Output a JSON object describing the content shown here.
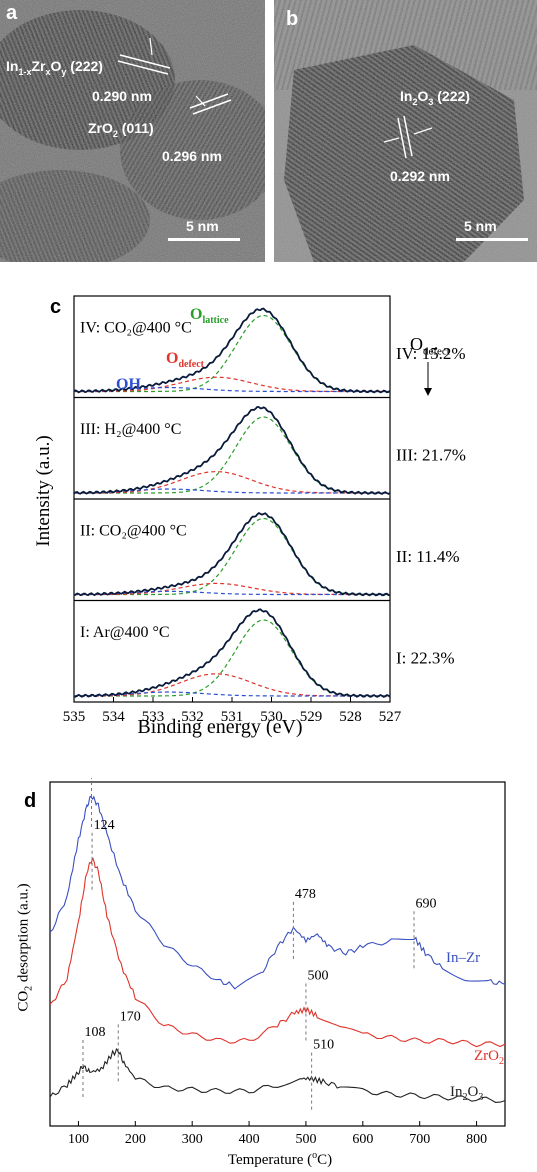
{
  "figure": {
    "panel_a": {
      "letter": "a",
      "labels": {
        "in_zr_main": "In",
        "in_zr_sub1": "1-x",
        "in_zr_mid": "Zr",
        "in_zr_sub2": "x",
        "in_zr_o": "O",
        "in_zr_sub3": "y",
        "in_zr_plane": " (222)",
        "d1": "0.290 nm",
        "zro2_main": "ZrO",
        "zro2_sub": "2",
        "zro2_plane": " (011)",
        "d2": "0.296 nm"
      },
      "scalebar": "5 nm"
    },
    "panel_b": {
      "letter": "b",
      "labels": {
        "in2o3_main": "In",
        "in2o3_sub1": "2",
        "in2o3_o": "O",
        "in2o3_sub2": "3",
        "in2o3_plane": " (222)",
        "d": "0.292 nm"
      },
      "scalebar": "5 nm"
    }
  },
  "chart_data": [
    {
      "panel": "c",
      "type": "line",
      "xlabel": "Binding energy (eV)",
      "ylabel": "Intensity (a.u.)",
      "xlim": [
        535,
        527
      ],
      "x_ticks": [
        "535",
        "534",
        "533",
        "532",
        "531",
        "530",
        "529",
        "528",
        "527"
      ],
      "component_labels": {
        "lattice_main": "O",
        "lattice_sub": "lattice",
        "defect_main": "O",
        "defect_sub": "defect",
        "oh": "OH"
      },
      "odefect_header": {
        "main": "O",
        "sub": "defect"
      },
      "component_colors": {
        "lattice": "#2a9d2a",
        "defect": "#e0332b",
        "oh": "#2c4fd0",
        "envelope": "#0a1a3a"
      },
      "spectra": [
        {
          "label": "IV: CO₂@400 °C",
          "odefect": "IV: 15.2%",
          "peak_ev": 530.2,
          "lattice_height": 1.0,
          "defect_height": 0.18,
          "oh_height": 0.05
        },
        {
          "label": "III: H₂@400 °C",
          "odefect": "III: 21.7%",
          "peak_ev": 530.2,
          "lattice_height": 1.0,
          "defect_height": 0.27,
          "oh_height": 0.05
        },
        {
          "label": "II: CO₂@400 °C",
          "odefect": "II: 11.4%",
          "peak_ev": 530.2,
          "lattice_height": 1.0,
          "defect_height": 0.14,
          "oh_height": 0.04
        },
        {
          "label": "I: Ar@400 °C",
          "odefect": "I: 22.3%",
          "peak_ev": 530.2,
          "lattice_height": 1.0,
          "defect_height": 0.28,
          "oh_height": 0.05
        }
      ]
    },
    {
      "panel": "d",
      "type": "line",
      "xlabel_main": "Temperature (",
      "xlabel_deg": "o",
      "xlabel_tail": "C)",
      "ylabel_main": "CO",
      "ylabel_sub": "2",
      "ylabel_tail": " desorption (a.u.)",
      "xlim": [
        50,
        850
      ],
      "x_ticks": [
        "100",
        "200",
        "300",
        "400",
        "500",
        "600",
        "700",
        "800"
      ],
      "series": [
        {
          "name": "In–Zr",
          "color": "#3a4fc0",
          "x": [
            50,
            80,
            100,
            115,
            123,
            135,
            150,
            175,
            200,
            250,
            300,
            350,
            380,
            420,
            450,
            478,
            500,
            520,
            540,
            570,
            600,
            650,
            690,
            710,
            740,
            780,
            820,
            850
          ],
          "y": [
            0.56,
            0.68,
            0.86,
            0.97,
            1.0,
            0.97,
            0.88,
            0.74,
            0.64,
            0.53,
            0.46,
            0.41,
            0.39,
            0.43,
            0.52,
            0.58,
            0.54,
            0.56,
            0.52,
            0.5,
            0.52,
            0.54,
            0.55,
            0.5,
            0.45,
            0.42,
            0.41,
            0.4
          ],
          "peaks": [
            "123",
            "478",
            "690"
          ]
        },
        {
          "name": "ZrO₂",
          "color": "#e0332b",
          "x": [
            50,
            80,
            100,
            115,
            124,
            135,
            150,
            175,
            200,
            250,
            300,
            350,
            400,
            450,
            480,
            500,
            520,
            560,
            600,
            650,
            700,
            750,
            800,
            850
          ],
          "y": [
            0.33,
            0.42,
            0.6,
            0.76,
            0.8,
            0.76,
            0.62,
            0.46,
            0.36,
            0.27,
            0.24,
            0.22,
            0.22,
            0.27,
            0.31,
            0.32,
            0.3,
            0.26,
            0.24,
            0.23,
            0.22,
            0.22,
            0.21,
            0.21
          ],
          "peaks": [
            "124",
            "500"
          ]
        },
        {
          "name": "In₂O₃",
          "color": "#222222",
          "x": [
            50,
            80,
            100,
            108,
            120,
            140,
            160,
            170,
            180,
            200,
            250,
            300,
            350,
            400,
            450,
            490,
            510,
            530,
            560,
            600,
            650,
            700,
            750,
            800,
            850
          ],
          "y": [
            0.04,
            0.08,
            0.12,
            0.14,
            0.12,
            0.13,
            0.18,
            0.19,
            0.15,
            0.1,
            0.07,
            0.065,
            0.06,
            0.06,
            0.08,
            0.1,
            0.1,
            0.09,
            0.075,
            0.06,
            0.05,
            0.045,
            0.04,
            0.035,
            0.03
          ],
          "peaks": [
            "108",
            "170",
            "510"
          ]
        }
      ],
      "series_labels": {
        "inzr": "In–Zr",
        "zro2_main": "ZrO",
        "zro2_sub": "2",
        "in2o3_main": "In",
        "in2o3_sub1": "2",
        "in2o3_o": "O",
        "in2o3_sub2": "3"
      }
    }
  ],
  "panel_letters": {
    "c": "c",
    "d": "d"
  }
}
